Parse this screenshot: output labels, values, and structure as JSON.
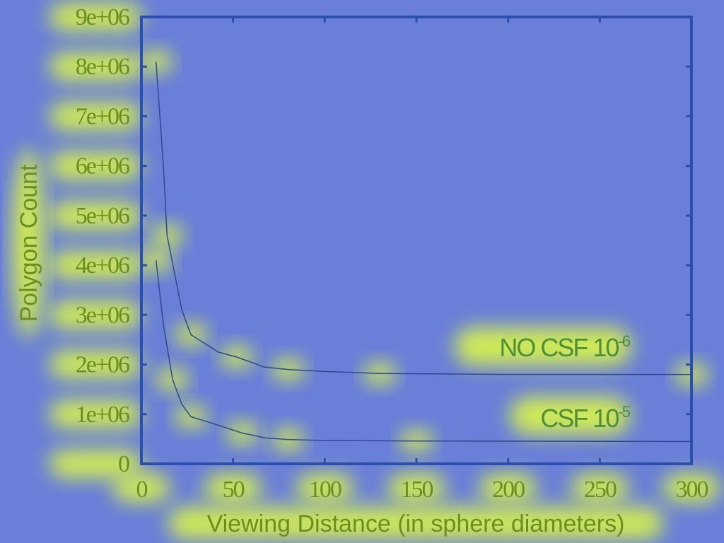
{
  "chart_data": {
    "type": "line",
    "xlabel": "Viewing Distance (in sphere diameters)",
    "ylabel": "Polygon Count",
    "xlim": [
      0,
      300
    ],
    "ylim": [
      0,
      9000000
    ],
    "x_ticks": [
      "0",
      "50",
      "100",
      "150",
      "200",
      "250",
      "300"
    ],
    "y_ticks": [
      "0",
      "1e+06",
      "2e+06",
      "3e+06",
      "4e+06",
      "5e+06",
      "6e+06",
      "7e+06",
      "8e+06",
      "9e+06"
    ],
    "x_tick_values": [
      0,
      50,
      100,
      150,
      200,
      250,
      300
    ],
    "y_tick_values": [
      0,
      1000000,
      2000000,
      3000000,
      4000000,
      5000000,
      6000000,
      7000000,
      8000000,
      9000000
    ],
    "grid": false,
    "colors": {
      "background": "#6a7fd8",
      "plot_frame": "#2a4fae",
      "series_line": "#2f4a8c",
      "label_glow": "#e3ff3c",
      "text": "#6b8f1f"
    },
    "series": [
      {
        "name_base": "NO CSF 10",
        "name_exp": "-6",
        "points": [
          [
            8,
            8100000
          ],
          [
            12,
            6000000
          ],
          [
            14,
            4600000
          ],
          [
            22,
            3100000
          ],
          [
            27,
            2600000
          ],
          [
            42,
            2250000
          ],
          [
            52,
            2150000
          ],
          [
            67,
            1950000
          ],
          [
            80,
            1900000
          ],
          [
            100,
            1860000
          ],
          [
            130,
            1820000
          ],
          [
            200,
            1800000
          ],
          [
            300,
            1800000
          ]
        ]
      },
      {
        "name_base": "CSF 10",
        "name_exp": "-5",
        "points": [
          [
            8,
            4100000
          ],
          [
            12,
            2800000
          ],
          [
            17,
            1700000
          ],
          [
            22,
            1200000
          ],
          [
            27,
            950000
          ],
          [
            40,
            800000
          ],
          [
            55,
            620000
          ],
          [
            68,
            520000
          ],
          [
            80,
            490000
          ],
          [
            100,
            470000
          ],
          [
            150,
            460000
          ],
          [
            300,
            450000
          ]
        ]
      }
    ]
  }
}
